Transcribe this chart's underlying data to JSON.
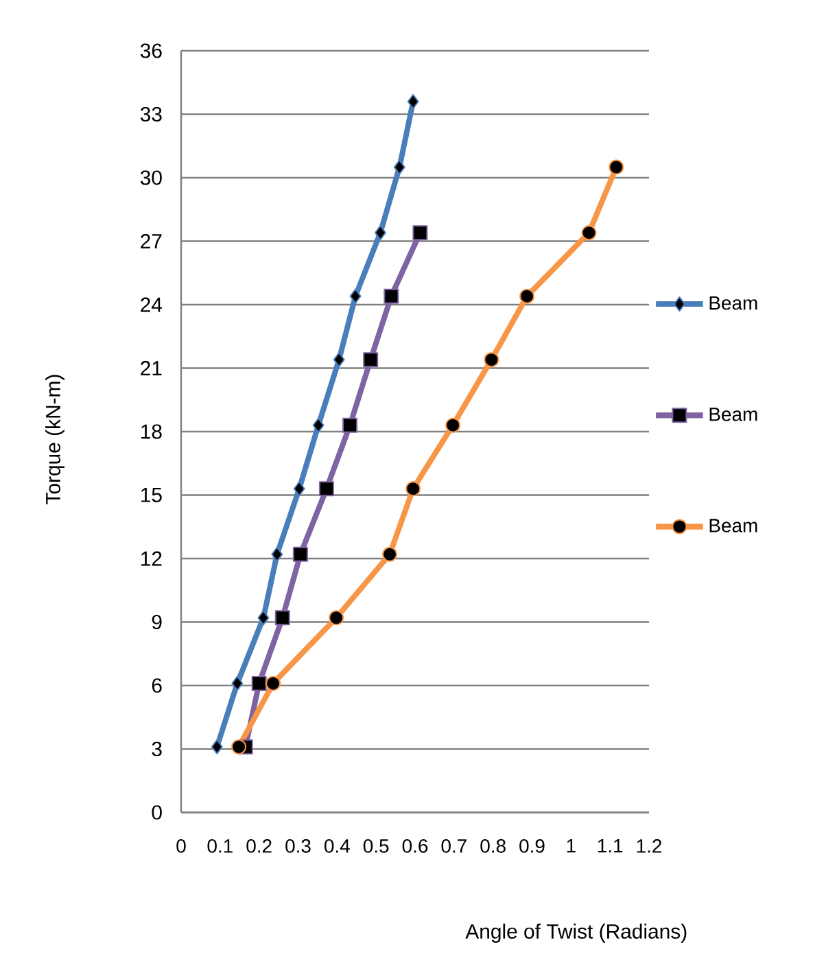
{
  "chart_data": {
    "type": "line",
    "xlabel": "Angle of Twist (Radians)",
    "ylabel": "Torque (kN-m)",
    "xlim": [
      0,
      1.2
    ],
    "xticks": [
      0,
      0.1,
      0.2,
      0.3,
      0.4,
      0.5,
      0.6,
      0.7,
      0.8,
      0.9,
      1,
      1.1,
      1.2
    ],
    "ylim": [
      0,
      36
    ],
    "yticks": [
      0,
      3,
      6,
      9,
      12,
      15,
      18,
      21,
      24,
      27,
      30,
      33,
      36
    ],
    "grid": "y",
    "legend": "right",
    "line_style": "solid",
    "series": [
      {
        "name": "Beam",
        "color": "#4a7ebb",
        "marker": "diamond",
        "x": [
          0.092,
          0.144,
          0.211,
          0.246,
          0.303,
          0.352,
          0.405,
          0.447,
          0.511,
          0.56,
          0.595
        ],
        "values": [
          3.1,
          6.1,
          9.2,
          12.2,
          15.3,
          18.3,
          21.4,
          24.4,
          27.4,
          30.5,
          33.6
        ]
      },
      {
        "name": "Beam",
        "color": "#7f63a2",
        "marker": "square",
        "x": [
          0.165,
          0.2,
          0.26,
          0.306,
          0.373,
          0.433,
          0.486,
          0.539,
          0.613
        ],
        "values": [
          3.1,
          6.1,
          9.2,
          12.2,
          15.3,
          18.3,
          21.4,
          24.4,
          27.4
        ]
      },
      {
        "name": "Beam",
        "color": "#f79646",
        "marker": "circle",
        "x": [
          0.148,
          0.236,
          0.398,
          0.535,
          0.595,
          0.697,
          0.796,
          0.887,
          1.046,
          1.116
        ],
        "values": [
          3.1,
          6.1,
          9.2,
          12.2,
          15.3,
          18.3,
          21.4,
          24.4,
          27.4,
          30.5
        ]
      }
    ]
  }
}
